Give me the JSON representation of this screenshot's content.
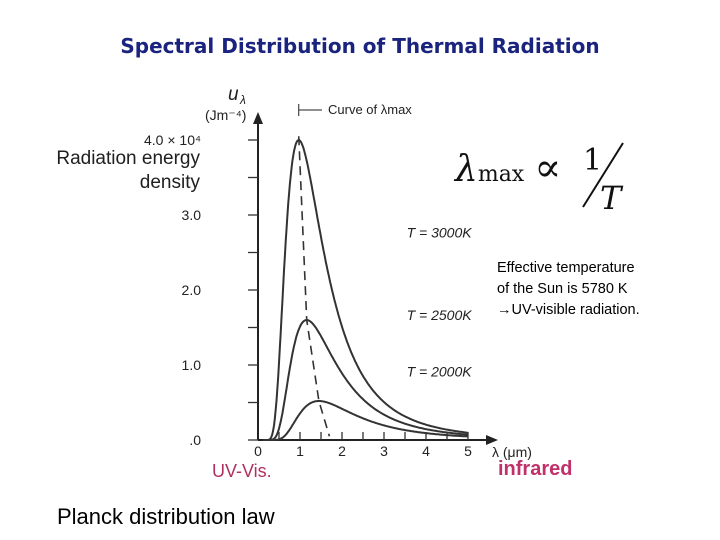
{
  "title": "Spectral Distribution of Thermal Radiation",
  "y_axis_label": "Radiation energy density",
  "formula": {
    "lhs": "λ",
    "lhs_sub": "max",
    "relation": "∝",
    "numerator": "1",
    "denominator": "T"
  },
  "note_lines": [
    "Effective temperature",
    "of the Sun is 5780 K",
    "→UV-visible radiation."
  ],
  "region_labels": {
    "uv_vis": "UV-Vis.",
    "infrared": "infrared"
  },
  "caption": "Planck distribution law",
  "chart_data": {
    "type": "line",
    "y_unit_label_symbol": "u",
    "y_unit_label_sub": "λ",
    "y_unit_label_units": "(Jm⁻⁴)",
    "x_unit_label": "λ (μm)",
    "x_ticks": [
      "0",
      "1",
      "2",
      "3",
      "4",
      "5"
    ],
    "y_ticks": [
      ".0",
      "1.0",
      "2.0",
      "3.0",
      "4.0 × 10⁴"
    ],
    "xlim": [
      0,
      5.4
    ],
    "ylim": [
      0,
      4.3
    ],
    "max_curve_label": "Curve of λmax",
    "series": [
      {
        "name": "T = 3000K",
        "peak_x": 0.97,
        "peak_y": 4.0,
        "color": "#333333"
      },
      {
        "name": "T = 2500K",
        "peak_x": 1.16,
        "peak_y": 1.6,
        "color": "#333333"
      },
      {
        "name": "T = 2000K",
        "peak_x": 1.45,
        "peak_y": 0.52,
        "color": "#333333"
      }
    ]
  }
}
